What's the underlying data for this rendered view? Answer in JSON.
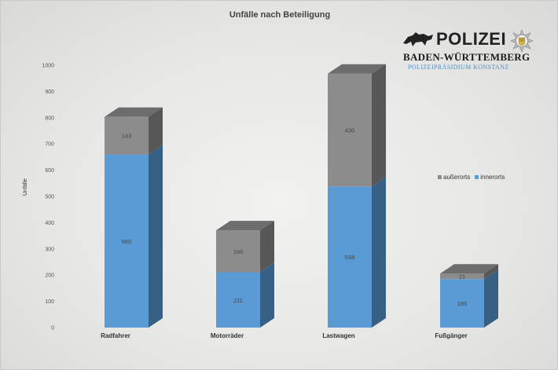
{
  "chart_data": {
    "type": "bar",
    "stacked": true,
    "style": "3d",
    "title": "Unfälle nach Beteiligung",
    "xlabel": "",
    "ylabel": "Unfälle",
    "ylim": [
      0,
      1000
    ],
    "yticks": [
      0,
      100,
      200,
      300,
      400,
      500,
      600,
      700,
      800,
      900,
      1000
    ],
    "categories": [
      "Radfahrer",
      "Motorräder",
      "Lastwagen",
      "Fußgänger"
    ],
    "series": [
      {
        "name": "innerorts",
        "color": "#5b9bd5",
        "values": [
          660,
          211,
          538,
          185
        ]
      },
      {
        "name": "außerorts",
        "color": "#8c8c8c",
        "values": [
          143,
          160,
          430,
          21
        ]
      }
    ],
    "legend_placement": "right",
    "grid": false
  },
  "logo": {
    "wordmark": "POLIZEI",
    "region": "BADEN-WÜRTTEMBERG",
    "office": "POLIZEIPRÄSIDIUM KONSTANZ"
  }
}
